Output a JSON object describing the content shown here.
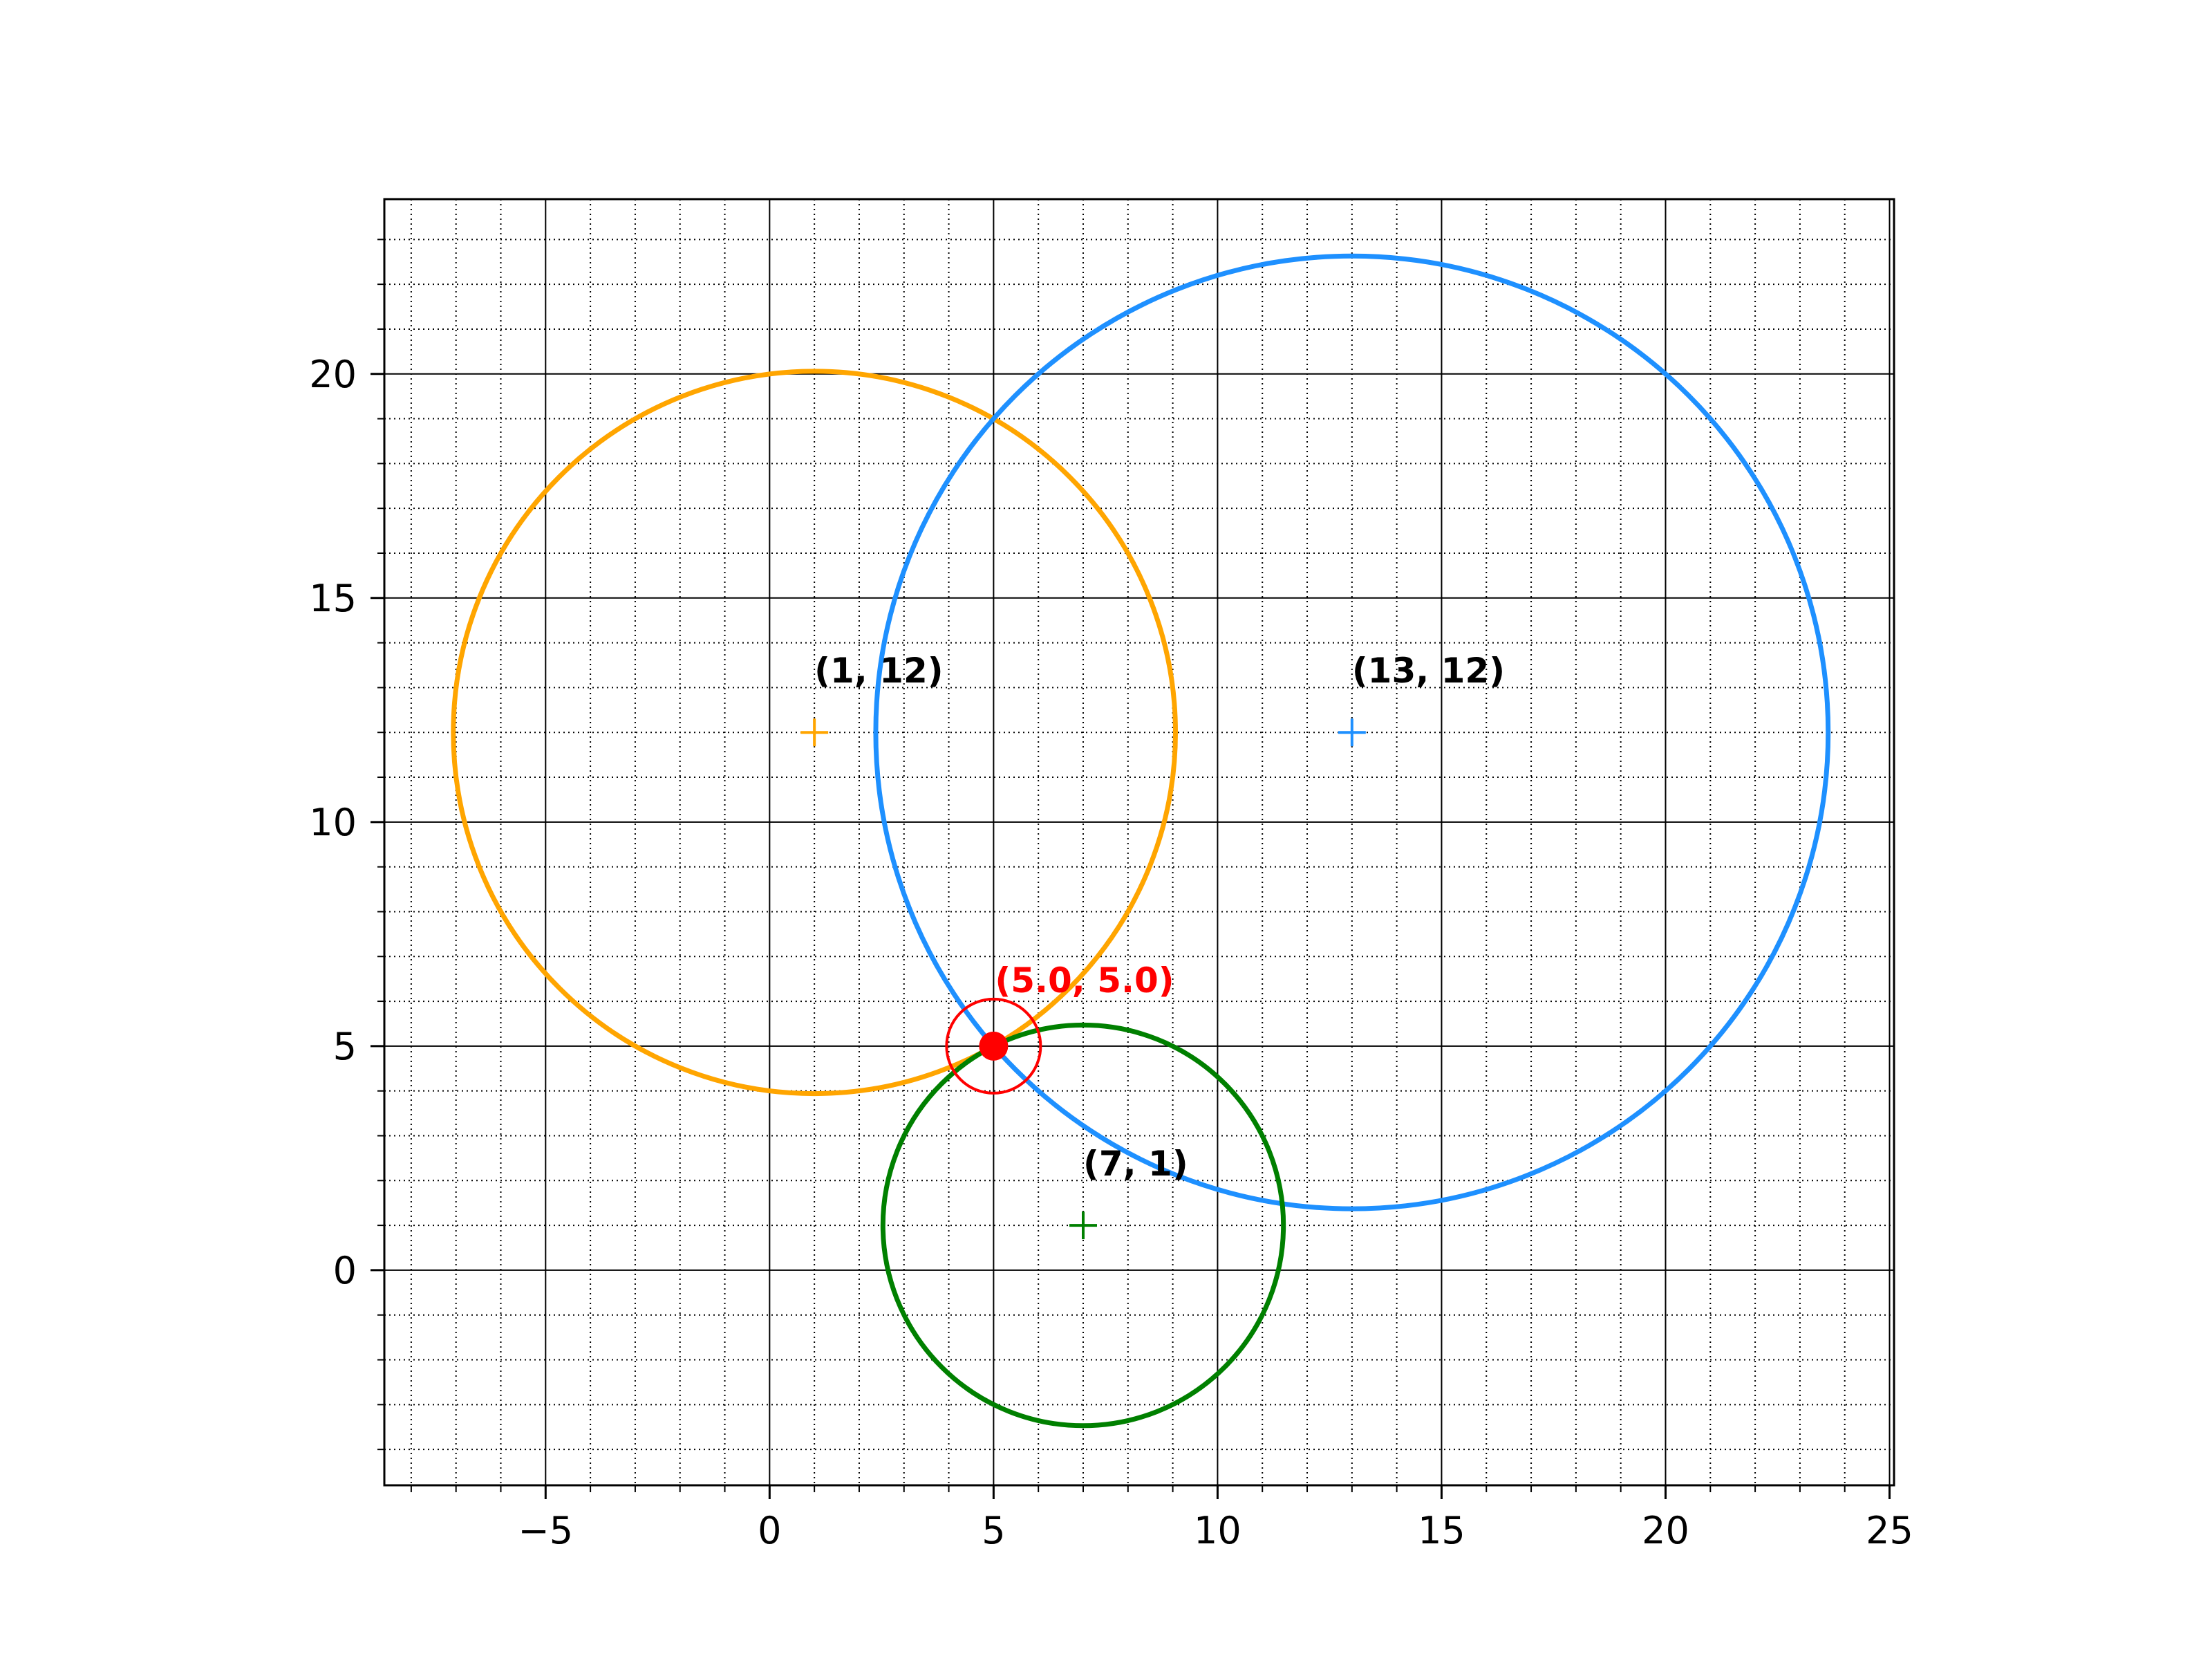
{
  "chart_data": {
    "type": "scatter",
    "title": "",
    "xlabel": "",
    "ylabel": "",
    "xlim": [
      -8.6,
      25.1
    ],
    "ylim": [
      -4.8,
      23.9
    ],
    "grid": {
      "major": true,
      "minor": true
    },
    "x_ticks": [
      -5,
      0,
      5,
      10,
      15,
      20,
      25
    ],
    "y_ticks": [
      0,
      5,
      10,
      15,
      20
    ],
    "x_tick_labels": [
      "−5",
      "0",
      "5",
      "10",
      "15",
      "20",
      "25"
    ],
    "y_tick_labels": [
      "0",
      "5",
      "10",
      "15",
      "20"
    ],
    "circles": [
      {
        "center": [
          1,
          12
        ],
        "radius": 8.06,
        "color": "#ffa500",
        "label": "(1, 12)"
      },
      {
        "center": [
          13,
          12
        ],
        "radius": 10.63,
        "color": "#1e90ff",
        "label": "(13, 12)"
      },
      {
        "center": [
          7,
          1
        ],
        "radius": 4.47,
        "color": "#008000",
        "label": "(7, 1)"
      }
    ],
    "intersection": {
      "point": [
        5.0,
        5.0
      ],
      "label": "(5.0, 5.0)",
      "color": "#ff0000"
    }
  }
}
